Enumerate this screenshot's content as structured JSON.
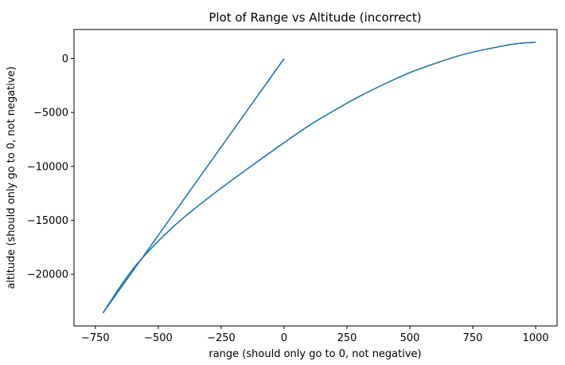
{
  "chart_data": {
    "type": "line",
    "title": "Plot of Range vs Altitude (incorrect)",
    "xlabel": "range (should only go to 0, not negative)",
    "ylabel": "altitude (should only go to 0, not negative)",
    "xlim": [
      -835,
      1085
    ],
    "ylim": [
      -24800,
      2700
    ],
    "xticks": [
      -750,
      -500,
      -250,
      0,
      250,
      500,
      750,
      1000
    ],
    "xtick_labels": [
      "−750",
      "−500",
      "−250",
      "0",
      "250",
      "500",
      "750",
      "1000"
    ],
    "yticks": [
      0,
      -5000,
      -10000,
      -15000,
      -20000
    ],
    "ytick_labels": [
      "0",
      "−5000",
      "−10000",
      "−15000",
      "−20000"
    ],
    "grid": false,
    "series": [
      {
        "color": "#1f77b4",
        "x": [
          0,
          -720,
          -650,
          -550,
          -450,
          -350,
          -250,
          -150,
          -50,
          0,
          100,
          200,
          300,
          400,
          500,
          600,
          700,
          800,
          900,
          1000
        ],
        "y": [
          0,
          -23600,
          -20800,
          -17300,
          -14300,
          -11900,
          -9700,
          -8400,
          -6700,
          -7700,
          -6000,
          -4500,
          -3100,
          -1900,
          -850,
          -50,
          600,
          1100,
          1400,
          1500
        ]
      }
    ]
  }
}
